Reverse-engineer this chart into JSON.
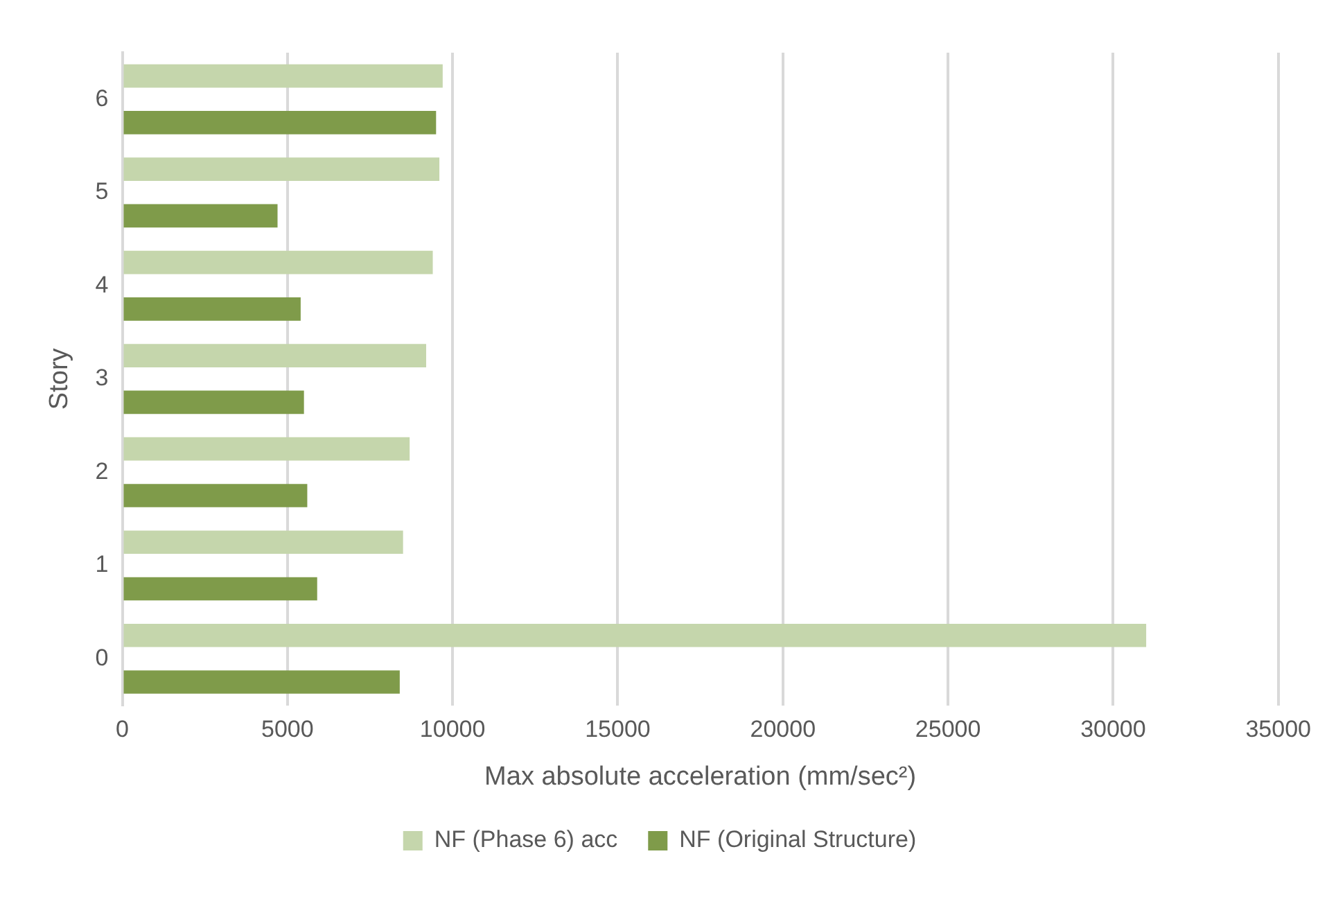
{
  "chart_data": {
    "type": "bar",
    "orientation": "horizontal",
    "xlabel": "Max absolute acceleration (mm/sec²)",
    "ylabel": "Story",
    "categories": [
      "6",
      "5",
      "4",
      "3",
      "2",
      "1",
      "0"
    ],
    "series": [
      {
        "name": "NF (Phase 6) acc",
        "color": "#c5d6ac",
        "values": [
          9700,
          9600,
          9400,
          9200,
          8700,
          8500,
          31000
        ]
      },
      {
        "name": "NF (Original Structure)",
        "color": "#7f9b4a",
        "values": [
          9500,
          4700,
          5400,
          5500,
          5600,
          5900,
          8400
        ]
      }
    ],
    "xlim": [
      0,
      35000
    ],
    "xticks": [
      0,
      5000,
      10000,
      15000,
      20000,
      25000,
      30000,
      35000
    ],
    "grid": "x",
    "legend": "bottom"
  }
}
